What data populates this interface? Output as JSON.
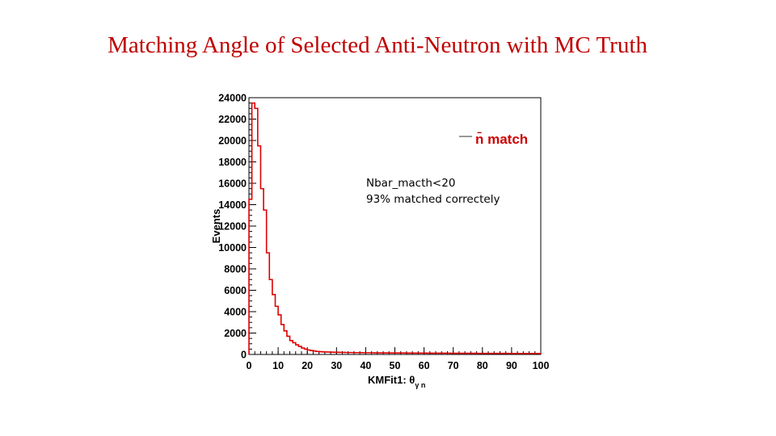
{
  "slide": {
    "title": "Matching Angle of Selected Anti-Neutron with MC Truth"
  },
  "annotation": {
    "line1": "Nbar_macth<20",
    "line2": "93% matched correctely"
  },
  "chart_data": {
    "type": "histogram",
    "title": "",
    "xlabel": "KMFit1: θγn",
    "xlabel_prefix": "KMFit1: ",
    "xlabel_symbol": "θ",
    "xlabel_subscript": "γ n",
    "ylabel": "Events",
    "xlim": [
      0,
      100
    ],
    "ylim": [
      0,
      24000
    ],
    "x_ticks": [
      0,
      10,
      20,
      30,
      40,
      50,
      60,
      70,
      80,
      90,
      100
    ],
    "y_ticks": [
      0,
      2000,
      4000,
      6000,
      8000,
      10000,
      12000,
      14000,
      16000,
      18000,
      20000,
      22000,
      24000
    ],
    "grid": false,
    "legend": {
      "position": "top-right",
      "entries": [
        {
          "label": "n̄ match",
          "color": "#cc0000"
        }
      ]
    },
    "series": [
      {
        "name": "n̄ match",
        "color": "#dd0000",
        "bin_width": 1,
        "bin_edges_start": 0,
        "values": [
          14500,
          23500,
          23000,
          19500,
          15500,
          13500,
          9500,
          7000,
          5600,
          4500,
          3700,
          2800,
          2200,
          1700,
          1300,
          1100,
          900,
          750,
          600,
          500,
          420,
          360,
          320,
          280,
          260,
          240,
          230,
          220,
          210,
          200,
          200,
          190,
          190,
          180,
          180,
          180,
          170,
          170,
          170,
          160,
          160,
          160,
          160,
          150,
          150,
          150,
          150,
          150,
          140,
          140,
          140,
          140,
          140,
          140,
          130,
          130,
          130,
          130,
          130,
          130,
          130,
          120,
          120,
          120,
          120,
          120,
          120,
          120,
          120,
          110,
          110,
          110,
          110,
          110,
          110,
          110,
          110,
          110,
          100,
          100,
          100,
          100,
          100,
          100,
          100,
          100,
          100,
          100,
          100,
          90,
          90,
          90,
          90,
          90,
          90,
          90,
          90,
          90,
          90,
          90
        ]
      }
    ]
  }
}
